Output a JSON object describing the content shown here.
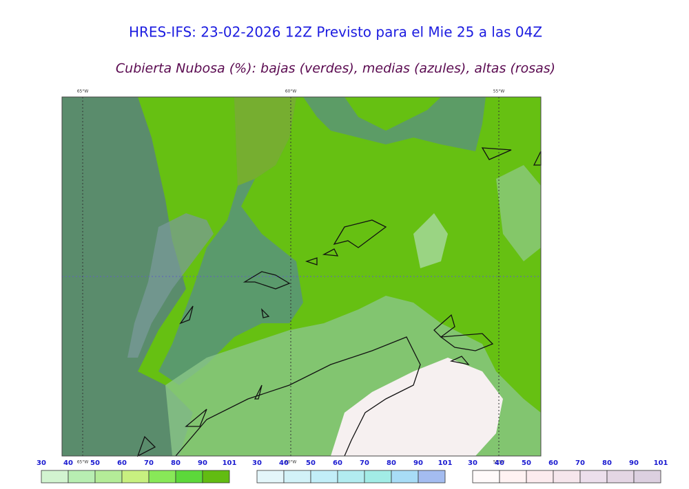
{
  "header": {
    "title": "HRES-IFS: 23-02-2026 12Z Previsto para el Mie 25 a las 04Z",
    "subtitle": "Cubierta Nubosa (%): bajas (verdes), medias (azules), altas (rosas)"
  },
  "map": {
    "longitude_labels": [
      "65°W",
      "60°W",
      "55°W"
    ]
  },
  "colorbars": [
    {
      "ticks": [
        30,
        40,
        50,
        60,
        70,
        80,
        90,
        101
      ],
      "colors": [
        "#d2f4d0",
        "#b8eeb2",
        "#b4ec98",
        "#c8f080",
        "#88e858",
        "#5cd83a",
        "#62bc12"
      ]
    },
    {
      "ticks": [
        30,
        40,
        50,
        60,
        70,
        80,
        90,
        101
      ],
      "colors": [
        "#e4f6fa",
        "#d2f2f8",
        "#c2eef8",
        "#b2ecf0",
        "#a2ece6",
        "#a8dcf6",
        "#a4bcf0"
      ]
    },
    {
      "ticks": [
        30,
        40,
        50,
        60,
        70,
        80,
        90,
        101
      ],
      "colors": [
        "#fffafa",
        "#fff2f2",
        "#fcebee",
        "#f6e6ec",
        "#ecdfec",
        "#e4d6e4",
        "#dcd0e0"
      ]
    }
  ]
}
